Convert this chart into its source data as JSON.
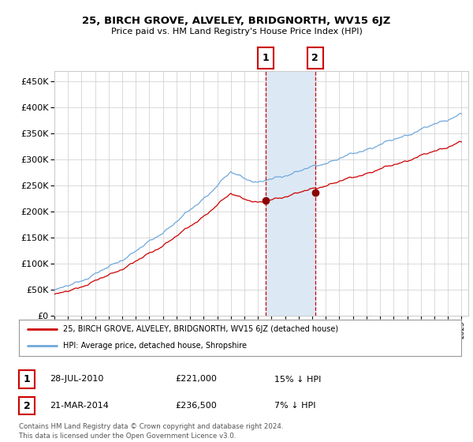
{
  "title": "25, BIRCH GROVE, ALVELEY, BRIDGNORTH, WV15 6JZ",
  "subtitle": "Price paid vs. HM Land Registry's House Price Index (HPI)",
  "legend_line1": "25, BIRCH GROVE, ALVELEY, BRIDGNORTH, WV15 6JZ (detached house)",
  "legend_line2": "HPI: Average price, detached house, Shropshire",
  "sale1_date": "28-JUL-2010",
  "sale1_price": 221000,
  "sale1_pct": "15% ↓ HPI",
  "sale2_date": "21-MAR-2014",
  "sale2_price": 236500,
  "sale2_pct": "7% ↓ HPI",
  "footnote": "Contains HM Land Registry data © Crown copyright and database right 2024.\nThis data is licensed under the Open Government Licence v3.0.",
  "hpi_color": "#6fa8dc",
  "price_color": "#cc0000",
  "marker_color": "#8b0000",
  "shade_color": "#dce9f5",
  "dashed_color": "#cc0000",
  "grid_color": "#cccccc",
  "bg_color": "#ffffff",
  "ylim": [
    0,
    470000
  ],
  "yticks": [
    0,
    50000,
    100000,
    150000,
    200000,
    250000,
    300000,
    350000,
    400000,
    450000
  ],
  "sale1_x": 2010.57,
  "sale2_x": 2014.22,
  "xmin": 1995.0,
  "xmax": 2025.5
}
